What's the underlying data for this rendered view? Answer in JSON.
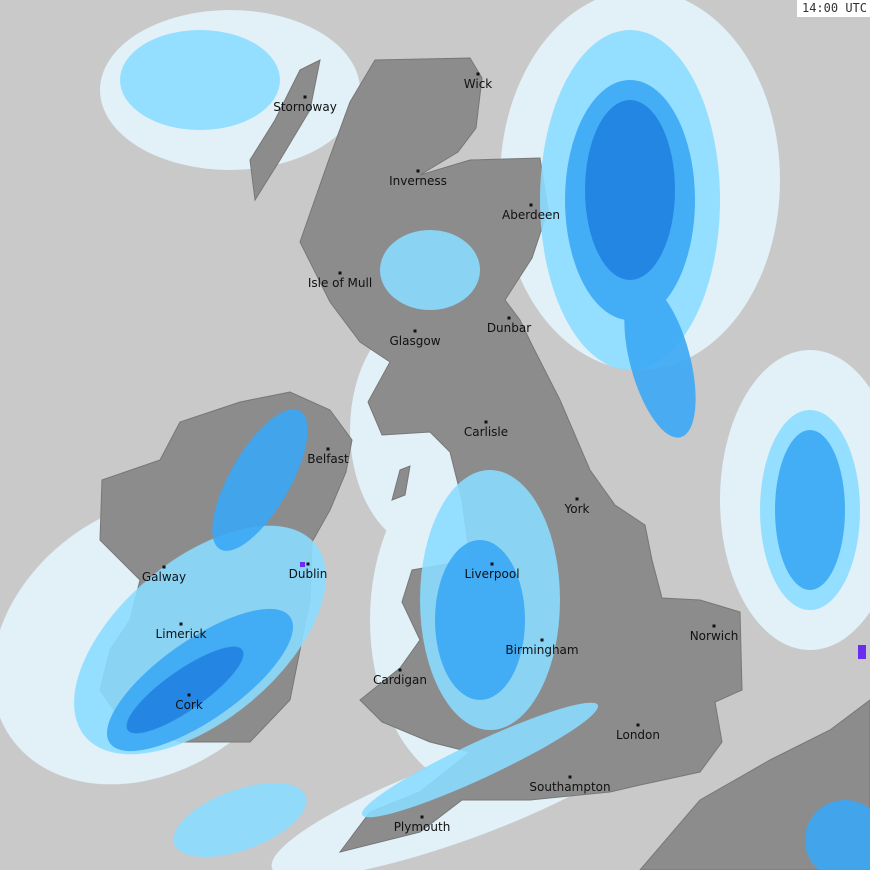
{
  "map": {
    "time_label": "14:00 UTC",
    "colors": {
      "sea": "#c9c9c9",
      "land": "#8c8c8c",
      "precip_very_light": "#e6f8ff",
      "precip_light": "#8cdcff",
      "precip_moderate": "#3aa8f5",
      "precip_heavy": "#1f7fe0",
      "precip_extreme": "#6a2cf0"
    },
    "cities": [
      "Wick",
      "Stornoway",
      "Inverness",
      "Aberdeen",
      "Isle of Mull",
      "Glasgow",
      "Dunbar",
      "Carlisle",
      "Belfast",
      "York",
      "Galway",
      "Dublin",
      "Liverpool",
      "Limerick",
      "Norwich",
      "Birmingham",
      "Cardigan",
      "Cork",
      "London",
      "Southampton",
      "Plymouth"
    ]
  }
}
